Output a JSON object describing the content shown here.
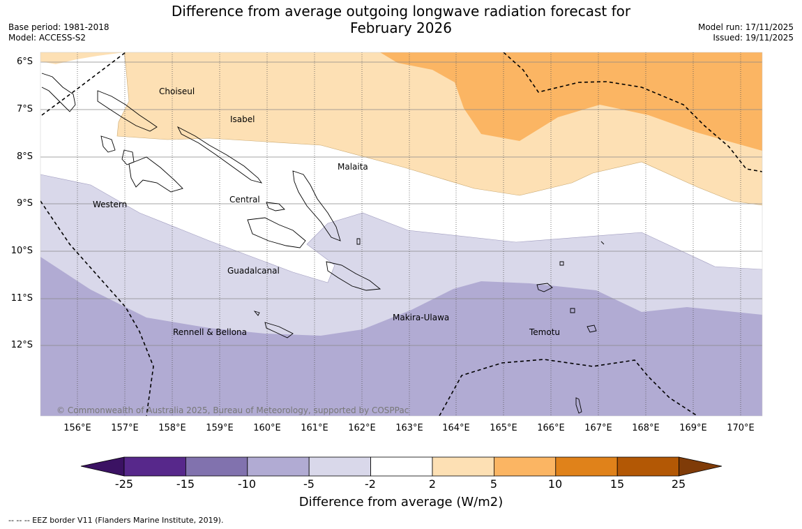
{
  "header": {
    "title_line1": "Difference from average outgoing longwave radiation forecast for",
    "title_line2": "February 2026",
    "base_period": "Base period: 1981-2018",
    "model": "Model: ACCESS-S2",
    "model_run": "Model run: 17/11/2025",
    "issued": "Issued: 19/11/2025"
  },
  "map": {
    "lat_labels": [
      "6°S",
      "7°S",
      "8°S",
      "9°S",
      "10°S",
      "11°S",
      "12°S"
    ],
    "lon_labels": [
      "156°E",
      "157°E",
      "158°E",
      "159°E",
      "160°E",
      "161°E",
      "162°E",
      "163°E",
      "164°E",
      "165°E",
      "166°E",
      "167°E",
      "168°E",
      "169°E",
      "170°E"
    ],
    "region_labels": {
      "choiseul": "Choiseul",
      "isabel": "Isabel",
      "malaita": "Malaita",
      "western": "Western",
      "central": "Central",
      "guadalcanal": "Guadalcanal",
      "makira": "Makira-Ulawa",
      "rennell": "Rennell & Bellona",
      "temotu": "Temotu"
    },
    "copyright": "© Commonwealth of Australia 2025, Bureau of Meteorology, supported by COSPPac"
  },
  "colorbar": {
    "ticks": [
      "-25",
      "-15",
      "-10",
      "-5",
      "-2",
      "2",
      "5",
      "10",
      "15",
      "25"
    ],
    "colors": [
      "#3b1263",
      "#57288b",
      "#8172ae",
      "#b1abd3",
      "#d9d8ea",
      "#ffffff",
      "#fde0b4",
      "#fbb563",
      "#e0821a",
      "#b35805",
      "#7f3b08"
    ],
    "title": "Difference from average (W/m2)"
  },
  "footnote": "--  --  -- EEZ border V11 (Flanders Marine Institute, 2019)."
}
